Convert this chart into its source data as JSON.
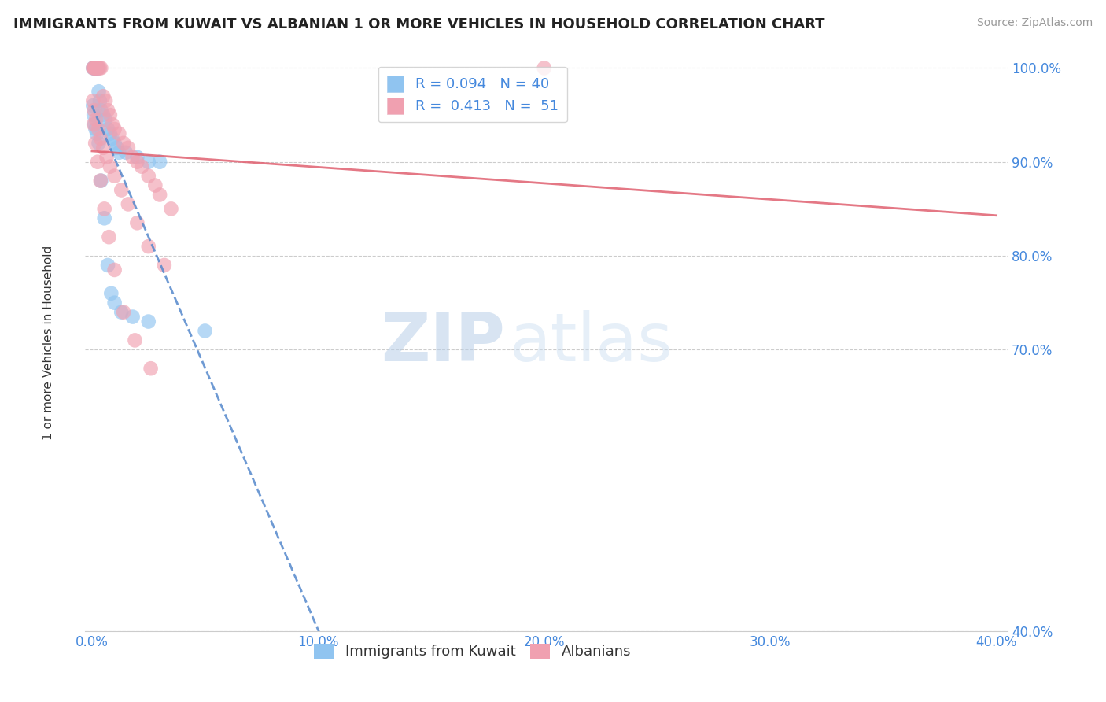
{
  "title": "IMMIGRANTS FROM KUWAIT VS ALBANIAN 1 OR MORE VEHICLES IN HOUSEHOLD CORRELATION CHART",
  "source": "Source: ZipAtlas.com",
  "ylabel": "1 or more Vehicles in Household",
  "y_ticks": [
    40.0,
    70.0,
    80.0,
    90.0,
    100.0
  ],
  "x_ticks": [
    0.0,
    10.0,
    20.0,
    30.0,
    40.0
  ],
  "background_color": "#ffffff",
  "kuwait_color": "#90c4f0",
  "albanian_color": "#f0a0b0",
  "kuwait_line_color": "#5588cc",
  "albanian_line_color": "#e06070",
  "legend_label_kuwait": "R = 0.094   N = 40",
  "legend_label_albanian": "R =  0.413   N =  51",
  "watermark_zip": "ZIP",
  "watermark_atlas": "atlas",
  "kuwait_x": [
    0.05,
    0.08,
    0.1,
    0.12,
    0.15,
    0.18,
    0.2,
    0.22,
    0.25,
    0.28,
    0.3,
    0.35,
    0.4,
    0.5,
    0.6,
    0.7,
    0.8,
    0.9,
    1.0,
    1.1,
    1.2,
    1.5,
    2.0,
    2.5,
    3.0,
    0.05,
    0.08,
    0.12,
    0.16,
    0.22,
    0.3,
    0.4,
    0.55,
    0.7,
    0.85,
    1.0,
    1.3,
    1.8,
    2.5,
    5.0
  ],
  "kuwait_y": [
    100.0,
    100.0,
    100.0,
    100.0,
    100.0,
    100.0,
    100.0,
    100.0,
    100.0,
    100.0,
    97.5,
    96.5,
    95.5,
    95.0,
    94.5,
    93.5,
    93.0,
    92.5,
    92.0,
    91.5,
    91.0,
    91.0,
    90.5,
    90.0,
    90.0,
    96.0,
    95.0,
    94.0,
    93.5,
    93.0,
    92.0,
    88.0,
    84.0,
    79.0,
    76.0,
    75.0,
    74.0,
    73.5,
    73.0,
    72.0
  ],
  "albanian_x": [
    0.05,
    0.08,
    0.1,
    0.15,
    0.18,
    0.2,
    0.25,
    0.3,
    0.35,
    0.4,
    0.5,
    0.6,
    0.7,
    0.8,
    0.9,
    1.0,
    1.2,
    1.4,
    1.6,
    1.8,
    2.0,
    2.2,
    2.5,
    2.8,
    3.0,
    3.5,
    0.05,
    0.1,
    0.18,
    0.28,
    0.38,
    0.5,
    0.65,
    0.8,
    1.0,
    1.3,
    1.6,
    2.0,
    2.5,
    3.2,
    0.08,
    0.15,
    0.25,
    0.38,
    0.55,
    0.75,
    1.0,
    1.4,
    1.9,
    2.6,
    20.0
  ],
  "albanian_y": [
    100.0,
    100.0,
    100.0,
    100.0,
    100.0,
    100.0,
    100.0,
    100.0,
    100.0,
    100.0,
    97.0,
    96.5,
    95.5,
    95.0,
    94.0,
    93.5,
    93.0,
    92.0,
    91.5,
    90.5,
    90.0,
    89.5,
    88.5,
    87.5,
    86.5,
    85.0,
    96.5,
    95.5,
    94.5,
    93.5,
    92.5,
    91.5,
    90.5,
    89.5,
    88.5,
    87.0,
    85.5,
    83.5,
    81.0,
    79.0,
    94.0,
    92.0,
    90.0,
    88.0,
    85.0,
    82.0,
    78.5,
    74.0,
    71.0,
    68.0,
    100.0
  ],
  "xlim_min": -0.3,
  "xlim_max": 40.5,
  "ylim_min": 62.0,
  "ylim_max": 101.5
}
